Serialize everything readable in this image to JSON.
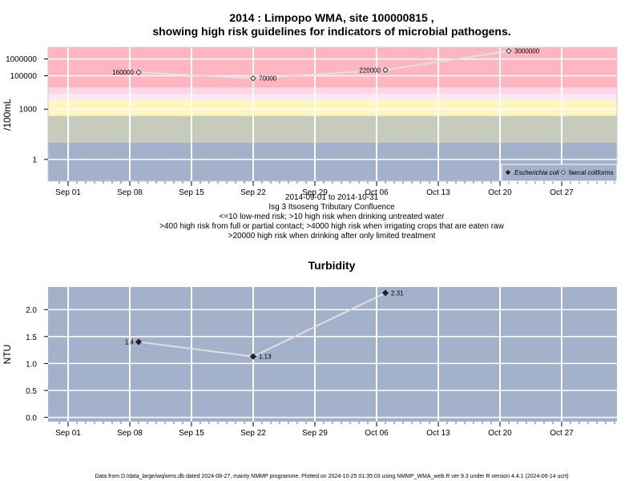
{
  "colors": {
    "band_high": "#ffb6c1",
    "band_pink": "#ffd6e6",
    "band_lavender": "#fbe5ff",
    "band_yellow": "#fff6c0",
    "band_sage": "#c6cbbc",
    "band_blue": "#a3b1cb",
    "grid": "#ffffff",
    "line": "#e0e0e0"
  },
  "chart_data": [
    {
      "type": "line",
      "title": "2014 : Limpopo WMA, site 100000815 ,",
      "subtitle": "showing high risk guidelines for indicators of microbial pathogens.",
      "ylabel": "/100mL",
      "yscale": "log",
      "ylim": [
        0.05,
        5000000
      ],
      "yticks": [
        1,
        1000,
        100000,
        1000000
      ],
      "ytick_labels": [
        "1",
        "1000",
        "100000",
        "1000000"
      ],
      "x_axis_dates": [
        "2014-09-01",
        "2014-09-08",
        "2014-09-15",
        "2014-09-22",
        "2014-09-29",
        "2014-10-06",
        "2014-10-13",
        "2014-10-20",
        "2014-10-27"
      ],
      "x_tick_labels": [
        "Sep 01",
        "Sep 08",
        "Sep 15",
        "Sep 22",
        "Sep 29",
        "Oct 06",
        "Oct 13",
        "Oct 20",
        "Oct 27"
      ],
      "risk_bands": [
        {
          "from": 0.05,
          "to": 10,
          "color": "band_blue"
        },
        {
          "from": 10,
          "to": 400,
          "color": "band_sage"
        },
        {
          "from": 400,
          "to": 4000,
          "color": "band_yellow"
        },
        {
          "from": 4000,
          "to": 8000,
          "color": "band_lavender"
        },
        {
          "from": 8000,
          "to": 20000,
          "color": "band_pink"
        },
        {
          "from": 20000,
          "to": 5000000,
          "color": "band_high"
        }
      ],
      "series": [
        {
          "name": "faecal coliforms",
          "marker": "open-diamond",
          "x": [
            "2014-09-09",
            "2014-09-22",
            "2014-10-07",
            "2014-10-21"
          ],
          "values": [
            160000,
            70000,
            220000,
            3000000
          ],
          "labels": [
            "160000",
            "70000",
            "220000",
            "3000000"
          ]
        }
      ],
      "legend": {
        "position": "bottom-right",
        "entries": [
          "Escherichia coli",
          "faecal coliforms"
        ]
      },
      "caption_lines": [
        "2014-09-01 to 2014-10-31",
        "Isg 3 Itsoseng Tributary Confluence",
        "<=10 low-med risk; >10 high risk when drinking untreated water",
        ">400 high risk from full or partial contact; >4000 high risk when irrigating crops that are eaten raw",
        ">20000 high risk when drinking after only limited treatment"
      ]
    },
    {
      "type": "line",
      "title": "Turbidity",
      "ylabel": "NTU",
      "ylim": [
        -0.08,
        2.42
      ],
      "yticks": [
        0.0,
        0.5,
        1.0,
        1.5,
        2.0
      ],
      "ytick_labels": [
        "0.0",
        "0.5",
        "1.0",
        "1.5",
        "2.0"
      ],
      "x_axis_dates": [
        "2014-09-01",
        "2014-09-08",
        "2014-09-15",
        "2014-09-22",
        "2014-09-29",
        "2014-10-06",
        "2014-10-13",
        "2014-10-20",
        "2014-10-27"
      ],
      "x_tick_labels": [
        "Sep 01",
        "Sep 08",
        "Sep 15",
        "Sep 22",
        "Sep 29",
        "Oct 06",
        "Oct 13",
        "Oct 20",
        "Oct 27"
      ],
      "series": [
        {
          "marker": "filled-diamond",
          "x": [
            "2014-09-09",
            "2014-09-22",
            "2014-10-07"
          ],
          "values": [
            1.4,
            1.13,
            2.31
          ],
          "labels": [
            "1.4",
            "1.13",
            "2.31"
          ]
        }
      ]
    }
  ],
  "footer": "Data from D:/data_large/wq/wms.db dated 2024-08-27, mainly NMMP programme. Plotted on 2024-10-25 01:35:03 using NMMP_WMA_web.R ver 9.3 under R version 4.4.1 (2024-06-14 ucrt)"
}
